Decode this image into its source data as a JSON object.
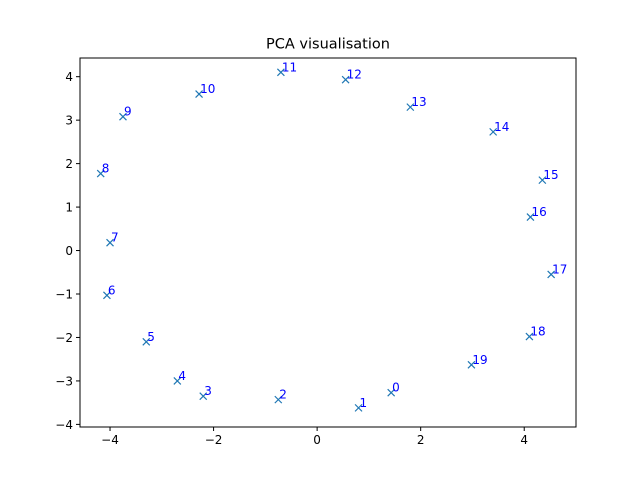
{
  "chart_data": {
    "type": "scatter",
    "title": "PCA visualisation",
    "xlabel": "",
    "ylabel": "",
    "xlim": [
      -4.58,
      5.0
    ],
    "ylim": [
      -4.06,
      4.43
    ],
    "xticks": [
      -4,
      -2,
      0,
      2,
      4
    ],
    "yticks": [
      -4,
      -3,
      -2,
      -1,
      0,
      1,
      2,
      3,
      4
    ],
    "grid": false,
    "marker": "x",
    "marker_color": "#1f77b4",
    "label_color": "#0000ff",
    "points": [
      {
        "label": "0",
        "x": 1.43,
        "y": -3.27
      },
      {
        "label": "1",
        "x": 0.8,
        "y": -3.62
      },
      {
        "label": "2",
        "x": -0.75,
        "y": -3.43
      },
      {
        "label": "3",
        "x": -2.2,
        "y": -3.35
      },
      {
        "label": "4",
        "x": -2.7,
        "y": -3.0
      },
      {
        "label": "5",
        "x": -3.3,
        "y": -2.1
      },
      {
        "label": "6",
        "x": -4.06,
        "y": -1.03
      },
      {
        "label": "7",
        "x": -4.0,
        "y": 0.18
      },
      {
        "label": "8",
        "x": -4.18,
        "y": 1.77
      },
      {
        "label": "9",
        "x": -3.75,
        "y": 3.08
      },
      {
        "label": "10",
        "x": -2.28,
        "y": 3.6
      },
      {
        "label": "11",
        "x": -0.7,
        "y": 4.1
      },
      {
        "label": "12",
        "x": 0.55,
        "y": 3.93
      },
      {
        "label": "13",
        "x": 1.8,
        "y": 3.3
      },
      {
        "label": "14",
        "x": 3.4,
        "y": 2.73
      },
      {
        "label": "15",
        "x": 4.35,
        "y": 1.62
      },
      {
        "label": "16",
        "x": 4.12,
        "y": 0.77
      },
      {
        "label": "17",
        "x": 4.52,
        "y": -0.55
      },
      {
        "label": "18",
        "x": 4.1,
        "y": -1.98
      },
      {
        "label": "19",
        "x": 2.98,
        "y": -2.63
      }
    ]
  }
}
